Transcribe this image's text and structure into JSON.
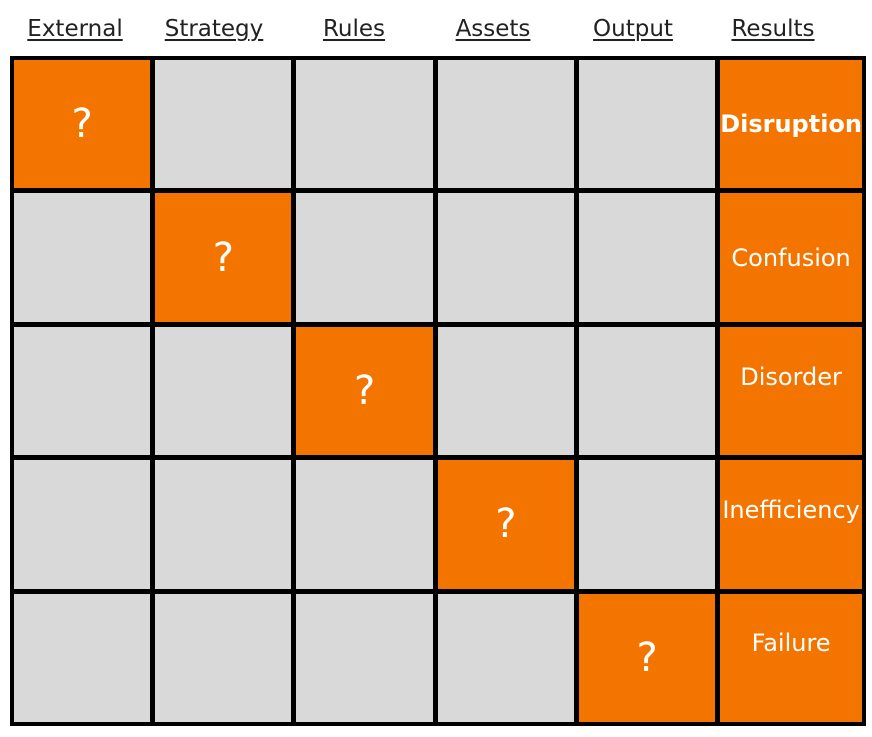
{
  "headers": [
    "External",
    "Strategy",
    "Rules",
    "Assets",
    "Output",
    "Results"
  ],
  "question_mark": "?",
  "results": [
    "Disruption",
    "Confusion",
    "Disorder",
    "Inefficiency",
    "Failure"
  ],
  "colors": {
    "highlight": "#f47400",
    "empty": "#d9d9d9",
    "border": "#000000"
  }
}
